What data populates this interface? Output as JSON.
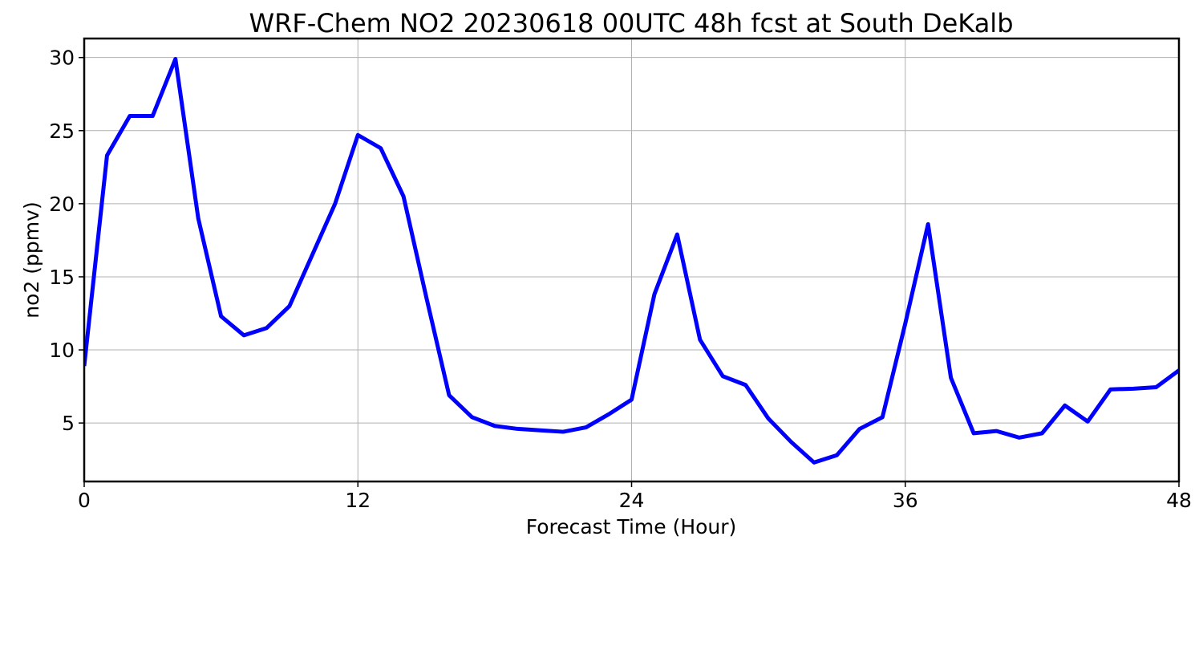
{
  "chart_data": {
    "type": "line",
    "title": "WRF-Chem NO2  20230618 00UTC 48h fcst at South DeKalb",
    "xlabel": "Forecast Time (Hour)",
    "ylabel": "no2  (ppmv)",
    "xlim": [
      0,
      48
    ],
    "ylim": [
      1.0,
      31.3
    ],
    "xticks": [
      0,
      12,
      24,
      36,
      48
    ],
    "yticks": [
      5,
      10,
      15,
      20,
      25,
      30
    ],
    "grid": true,
    "series": [
      {
        "color": "#0000ff",
        "x": [
          0,
          1,
          2,
          3,
          4,
          5,
          6,
          7,
          8,
          9,
          10,
          11,
          12,
          13,
          14,
          15,
          16,
          17,
          18,
          19,
          20,
          21,
          22,
          23,
          24,
          25,
          26,
          27,
          28,
          29,
          30,
          31,
          32,
          33,
          34,
          35,
          36,
          37,
          38,
          39,
          40,
          41,
          42,
          43,
          44,
          45,
          46,
          47,
          48
        ],
        "y": [
          8.9,
          23.3,
          26.0,
          26.0,
          29.9,
          19.0,
          12.3,
          11.0,
          11.5,
          13.0,
          16.5,
          20.0,
          24.7,
          23.8,
          20.5,
          13.6,
          6.9,
          5.4,
          4.8,
          4.6,
          4.5,
          4.4,
          4.7,
          5.6,
          6.6,
          13.8,
          17.9,
          10.7,
          8.2,
          7.6,
          5.3,
          3.7,
          2.3,
          2.8,
          4.6,
          5.4,
          11.8,
          18.6,
          8.1,
          4.3,
          4.45,
          4.0,
          4.3,
          6.2,
          5.1,
          7.3,
          7.35,
          7.45,
          8.6
        ]
      }
    ]
  }
}
